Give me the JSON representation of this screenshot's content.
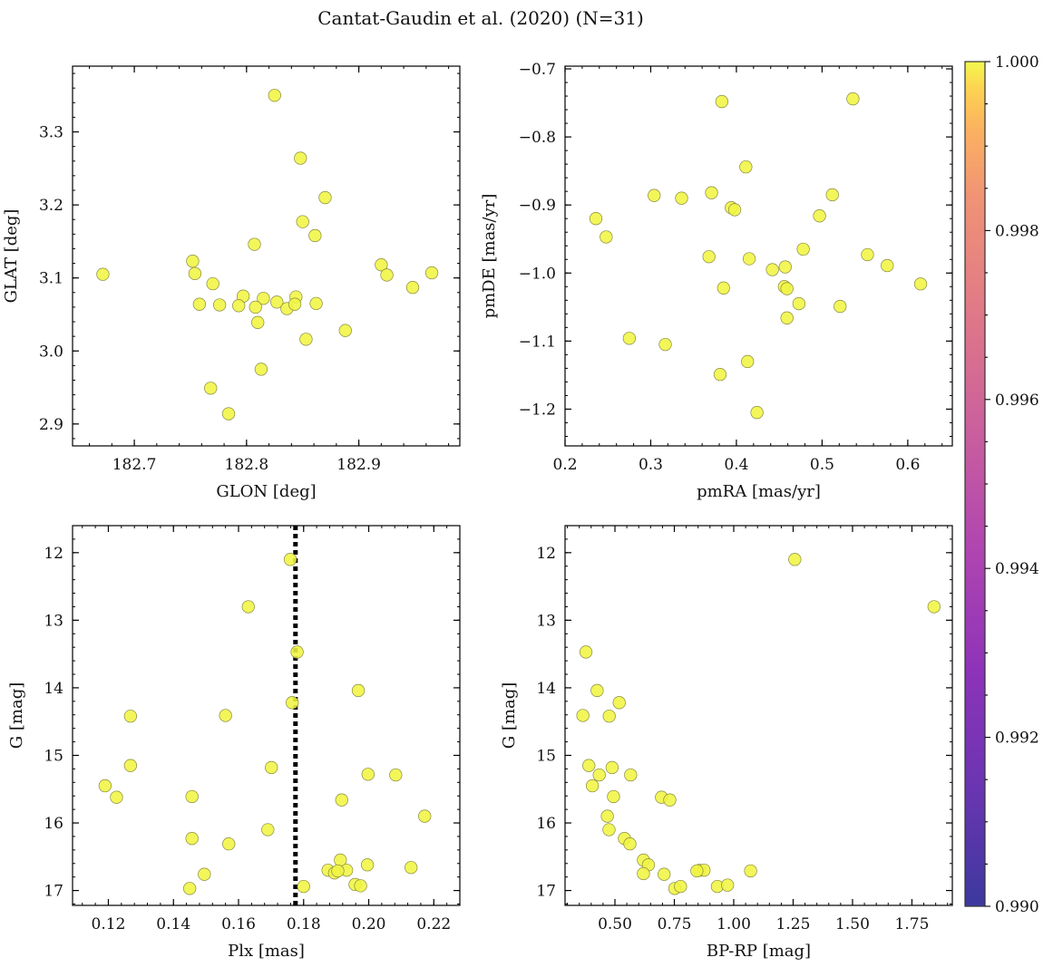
{
  "figure": {
    "title": "Cantat-Gaudin et al. (2020) (N=31)"
  },
  "colorbar": {
    "min": 0.99,
    "max": 1.0,
    "ticks": [
      "0.990",
      "0.992",
      "0.994",
      "0.996",
      "0.998",
      "1.000"
    ],
    "colormap": "plasma"
  },
  "marker_color": "#f0f542",
  "chart_data": [
    {
      "type": "scatter",
      "xlabel": "GLON [deg]",
      "ylabel": "GLAT [deg]",
      "xlim": [
        182.645,
        182.99
      ],
      "ylim": [
        2.87,
        3.39
      ],
      "yinvert": false,
      "xticks": [
        182.7,
        182.8,
        182.9
      ],
      "xtick_labels": [
        "182.7",
        "182.8",
        "182.9"
      ],
      "yticks": [
        2.9,
        3.0,
        3.1,
        3.2,
        3.3
      ],
      "ytick_labels": [
        "2.9",
        "3.0",
        "3.1",
        "3.2",
        "3.3"
      ],
      "x": [
        182.825,
        182.848,
        182.87,
        182.85,
        182.861,
        182.672,
        182.752,
        182.754,
        182.77,
        182.776,
        182.807,
        182.797,
        182.793,
        182.815,
        182.827,
        182.836,
        182.844,
        182.843,
        182.862,
        182.808,
        182.81,
        182.853,
        182.888,
        182.758,
        182.813,
        182.768,
        182.784,
        182.92,
        182.925,
        182.948,
        182.965
      ],
      "y": [
        3.35,
        3.264,
        3.21,
        3.177,
        3.158,
        3.105,
        3.123,
        3.106,
        3.092,
        3.063,
        3.146,
        3.075,
        3.062,
        3.072,
        3.067,
        3.058,
        3.074,
        3.064,
        3.065,
        3.06,
        3.039,
        3.016,
        3.028,
        3.064,
        2.975,
        2.949,
        2.914,
        3.118,
        3.104,
        3.087,
        3.107
      ],
      "c": [
        1,
        1,
        1,
        1,
        1,
        1,
        1,
        1,
        1,
        1,
        1,
        1,
        1,
        1,
        1,
        1,
        1,
        1,
        1,
        1,
        1,
        1,
        1,
        1,
        1,
        1,
        1,
        1,
        1,
        1,
        1
      ]
    },
    {
      "type": "scatter",
      "xlabel": "pmRA [mas/yr]",
      "ylabel": "pmDE [mas/yr]",
      "xlim": [
        0.2,
        0.652
      ],
      "ylim": [
        -1.254,
        -0.696
      ],
      "yinvert": false,
      "xticks": [
        0.2,
        0.3,
        0.4,
        0.5,
        0.6
      ],
      "xtick_labels": [
        "0.2",
        "0.3",
        "0.4",
        "0.5",
        "0.6"
      ],
      "yticks": [
        -1.2,
        -1.1,
        -1.0,
        -0.9,
        -0.8,
        -0.7
      ],
      "ytick_labels": [
        "−1.2",
        "−1.1",
        "−1.0",
        "−0.9",
        "−0.8",
        "−0.7"
      ],
      "x": [
        0.536,
        0.383,
        0.411,
        0.236,
        0.248,
        0.304,
        0.336,
        0.371,
        0.394,
        0.398,
        0.512,
        0.497,
        0.553,
        0.478,
        0.576,
        0.615,
        0.368,
        0.415,
        0.442,
        0.457,
        0.456,
        0.459,
        0.385,
        0.473,
        0.521,
        0.459,
        0.275,
        0.317,
        0.413,
        0.381,
        0.424
      ],
      "y": [
        -0.744,
        -0.748,
        -0.844,
        -0.92,
        -0.947,
        -0.886,
        -0.89,
        -0.882,
        -0.904,
        -0.907,
        -0.885,
        -0.916,
        -0.973,
        -0.965,
        -0.989,
        -1.016,
        -0.976,
        -0.979,
        -0.995,
        -0.991,
        -1.02,
        -1.023,
        -1.022,
        -1.045,
        -1.049,
        -1.066,
        -1.096,
        -1.105,
        -1.13,
        -1.149,
        -1.205
      ],
      "c": [
        1,
        1,
        1,
        1,
        1,
        1,
        1,
        1,
        1,
        1,
        1,
        1,
        1,
        1,
        1,
        1,
        1,
        1,
        1,
        1,
        1,
        1,
        1,
        1,
        1,
        1,
        1,
        1,
        1,
        1,
        1
      ]
    },
    {
      "type": "scatter",
      "xlabel": "Plx [mas]",
      "ylabel": "G [mag]",
      "xlim": [
        0.109,
        0.228
      ],
      "ylim": [
        17.22,
        11.6
      ],
      "yinvert": true,
      "xticks": [
        0.12,
        0.14,
        0.16,
        0.18,
        0.2,
        0.22
      ],
      "xtick_labels": [
        "0.12",
        "0.14",
        "0.16",
        "0.18",
        "0.20",
        "0.22"
      ],
      "yticks": [
        12,
        13,
        14,
        15,
        16,
        17
      ],
      "ytick_labels": [
        "12",
        "13",
        "14",
        "15",
        "16",
        "17"
      ],
      "vline": 0.1775,
      "x": [
        0.1759,
        0.163,
        0.178,
        0.1968,
        0.1765,
        0.1268,
        0.156,
        0.1268,
        0.1701,
        0.119,
        0.1225,
        0.1457,
        0.1998,
        0.2083,
        0.1917,
        0.2172,
        0.169,
        0.1457,
        0.157,
        0.1913,
        0.213,
        0.1996,
        0.1875,
        0.1895,
        0.1932,
        0.1958,
        0.1975,
        0.18,
        0.1495,
        0.145,
        0.1905
      ],
      "y": [
        12.1,
        12.8,
        13.47,
        14.04,
        14.22,
        14.42,
        14.41,
        15.15,
        15.18,
        15.45,
        15.62,
        15.61,
        15.28,
        15.29,
        15.66,
        15.9,
        16.1,
        16.23,
        16.31,
        16.55,
        16.66,
        16.62,
        16.7,
        16.74,
        16.7,
        16.91,
        16.93,
        16.94,
        16.76,
        16.97,
        16.71
      ],
      "c": [
        1,
        1,
        1,
        1,
        1,
        1,
        1,
        1,
        1,
        1,
        1,
        1,
        1,
        1,
        1,
        1,
        1,
        1,
        1,
        1,
        1,
        1,
        1,
        1,
        1,
        1,
        1,
        1,
        1,
        1,
        1
      ]
    },
    {
      "type": "scatter",
      "xlabel": "BP-RP [mag]",
      "ylabel": "G [mag]",
      "xlim": [
        0.29,
        1.92
      ],
      "ylim": [
        17.22,
        11.6
      ],
      "yinvert": true,
      "xticks": [
        0.5,
        0.75,
        1.0,
        1.25,
        1.5,
        1.75
      ],
      "xtick_labels": [
        "0.50",
        "0.75",
        "1.00",
        "1.25",
        "1.50",
        "1.75"
      ],
      "yticks": [
        12,
        13,
        14,
        15,
        16,
        17
      ],
      "ytick_labels": [
        "12",
        "13",
        "14",
        "15",
        "16",
        "17"
      ],
      "x": [
        1.257,
        1.843,
        0.378,
        0.425,
        0.518,
        0.365,
        0.476,
        0.39,
        0.488,
        0.405,
        0.434,
        0.494,
        0.566,
        0.696,
        0.731,
        0.468,
        0.475,
        0.54,
        0.563,
        0.62,
        0.641,
        0.62,
        0.707,
        0.856,
        0.875,
        0.931,
        0.974,
        1.071,
        0.752,
        0.776,
        0.845
      ],
      "y": [
        12.1,
        12.8,
        13.47,
        14.04,
        14.22,
        14.41,
        14.42,
        15.15,
        15.18,
        15.45,
        15.29,
        15.61,
        15.29,
        15.62,
        15.66,
        15.9,
        16.1,
        16.23,
        16.31,
        16.55,
        16.62,
        16.75,
        16.76,
        16.7,
        16.7,
        16.94,
        16.92,
        16.71,
        16.97,
        16.94,
        16.71
      ],
      "c": [
        1,
        1,
        1,
        1,
        1,
        1,
        1,
        1,
        1,
        1,
        1,
        1,
        1,
        1,
        1,
        1,
        1,
        1,
        1,
        1,
        1,
        1,
        1,
        1,
        1,
        1,
        1,
        1,
        1,
        1,
        1
      ]
    }
  ]
}
